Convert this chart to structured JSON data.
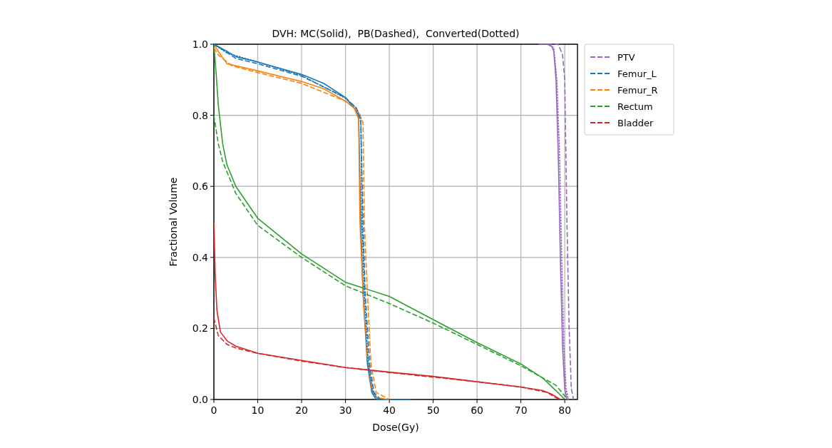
{
  "chart_data": {
    "type": "line",
    "title": "DVH: MC(Solid),  PB(Dashed),  Converted(Dotted)",
    "xlabel": "Dose(Gy)",
    "ylabel": "Fractional Volume",
    "xlim": [
      0,
      82.9
    ],
    "ylim": [
      0,
      1
    ],
    "xticks": [
      0,
      10,
      20,
      30,
      40,
      50,
      60,
      70,
      80
    ],
    "yticks": [
      {
        "value": 0,
        "label": "0.0"
      },
      {
        "value": 0.2,
        "label": "0.2"
      },
      {
        "value": 0.4,
        "label": "0.4"
      },
      {
        "value": 0.6,
        "label": "0.6"
      },
      {
        "value": 0.8,
        "label": "0.8"
      },
      {
        "value": 1,
        "label": "1.0"
      }
    ],
    "grid": true,
    "legend": "top right",
    "marker": "none",
    "series": [
      {
        "color": "#9467bd",
        "line_style": "solid",
        "x": [
          74,
          76,
          77,
          77.5,
          78,
          78.5,
          79,
          79.5,
          80,
          80.5
        ],
        "values": [
          1,
          1,
          0.995,
          0.98,
          0.9,
          0.7,
          0.4,
          0.15,
          0.03,
          0
        ]
      },
      {
        "color": "#1f77b4",
        "line_style": "solid",
        "x": [
          0,
          3,
          5,
          10,
          20,
          25,
          30,
          32,
          33,
          33.5,
          34,
          35,
          36,
          37,
          45
        ],
        "values": [
          1,
          0.98,
          0.965,
          0.95,
          0.915,
          0.89,
          0.85,
          0.82,
          0.8,
          0.5,
          0.3,
          0.1,
          0.02,
          0,
          0
        ]
      },
      {
        "color": "#ff7f0e",
        "line_style": "solid",
        "x": [
          0,
          1,
          3,
          10,
          20,
          25,
          30,
          32,
          33,
          33.3,
          34,
          35,
          36,
          37,
          40
        ],
        "values": [
          1,
          0.98,
          0.945,
          0.925,
          0.895,
          0.875,
          0.84,
          0.82,
          0.79,
          0.5,
          0.3,
          0.12,
          0.03,
          0.005,
          0
        ]
      },
      {
        "color": "#2ca02c",
        "line_style": "solid",
        "x": [
          0,
          0.5,
          1,
          2,
          3,
          5,
          10,
          20,
          30,
          40,
          50,
          60,
          70,
          75,
          78,
          80
        ],
        "values": [
          1,
          0.92,
          0.83,
          0.72,
          0.66,
          0.6,
          0.51,
          0.41,
          0.33,
          0.29,
          0.225,
          0.16,
          0.1,
          0.06,
          0.025,
          0
        ]
      },
      {
        "color": "#d62728",
        "line_style": "solid",
        "x": [
          0,
          0.3,
          0.7,
          1.5,
          3,
          5,
          10,
          20,
          30,
          40,
          50,
          60,
          70,
          75,
          77,
          79
        ],
        "values": [
          0.5,
          0.35,
          0.25,
          0.19,
          0.165,
          0.15,
          0.13,
          0.11,
          0.09,
          0.077,
          0.065,
          0.05,
          0.035,
          0.025,
          0.015,
          0
        ]
      },
      {
        "name": "PTV",
        "color": "#9467bd",
        "line_style": "dashed",
        "x": [
          76,
          78.5,
          79.5,
          80,
          80.5,
          81,
          81.5,
          82
        ],
        "values": [
          1,
          1,
          0.97,
          0.9,
          0.5,
          0.2,
          0.03,
          0
        ]
      },
      {
        "name": "Femur_L",
        "color": "#1f77b4",
        "line_style": "dashed",
        "x": [
          0,
          2,
          5,
          10,
          20,
          30,
          32.5,
          33.5,
          34,
          34.5,
          35.5,
          36.5,
          38
        ],
        "values": [
          1,
          0.985,
          0.96,
          0.945,
          0.91,
          0.85,
          0.82,
          0.78,
          0.5,
          0.3,
          0.1,
          0.02,
          0
        ]
      },
      {
        "name": "Femur_R",
        "color": "#ff7f0e",
        "line_style": "dashed",
        "x": [
          0,
          1,
          4,
          10,
          20,
          30,
          33,
          34,
          34.3,
          35,
          35.8,
          37,
          40
        ],
        "values": [
          0.99,
          0.97,
          0.94,
          0.92,
          0.89,
          0.84,
          0.81,
          0.78,
          0.5,
          0.3,
          0.1,
          0.02,
          0
        ]
      },
      {
        "name": "Rectum",
        "color": "#2ca02c",
        "line_style": "dashed",
        "x": [
          0,
          1,
          2,
          5,
          10,
          20,
          30,
          40,
          50,
          60,
          70,
          78,
          80,
          81
        ],
        "values": [
          0.8,
          0.72,
          0.67,
          0.58,
          0.49,
          0.4,
          0.32,
          0.27,
          0.215,
          0.155,
          0.095,
          0.04,
          0.01,
          0
        ]
      },
      {
        "name": "Bladder",
        "color": "#d62728",
        "line_style": "dashed",
        "x": [
          0,
          1,
          3,
          5,
          10,
          20,
          30,
          40,
          50,
          60,
          70,
          76,
          78,
          79
        ],
        "values": [
          0.23,
          0.18,
          0.155,
          0.145,
          0.13,
          0.108,
          0.09,
          0.076,
          0.063,
          0.05,
          0.035,
          0.02,
          0.005,
          0
        ]
      },
      {
        "color": "#9467bd",
        "line_style": "dotted",
        "x": [
          76,
          77.5,
          78.2,
          78.8,
          79.3,
          79.8,
          80.3,
          80.8
        ],
        "values": [
          1,
          0.99,
          0.9,
          0.7,
          0.4,
          0.15,
          0.03,
          0
        ]
      },
      {
        "color": "#1f77b4",
        "line_style": "dotted",
        "x": [
          0,
          3,
          10,
          20,
          30,
          32.5,
          33.5,
          33.8,
          34.3,
          35.2,
          36.3,
          37.5
        ],
        "values": [
          1,
          0.975,
          0.95,
          0.912,
          0.848,
          0.82,
          0.79,
          0.5,
          0.3,
          0.1,
          0.02,
          0
        ]
      }
    ]
  }
}
